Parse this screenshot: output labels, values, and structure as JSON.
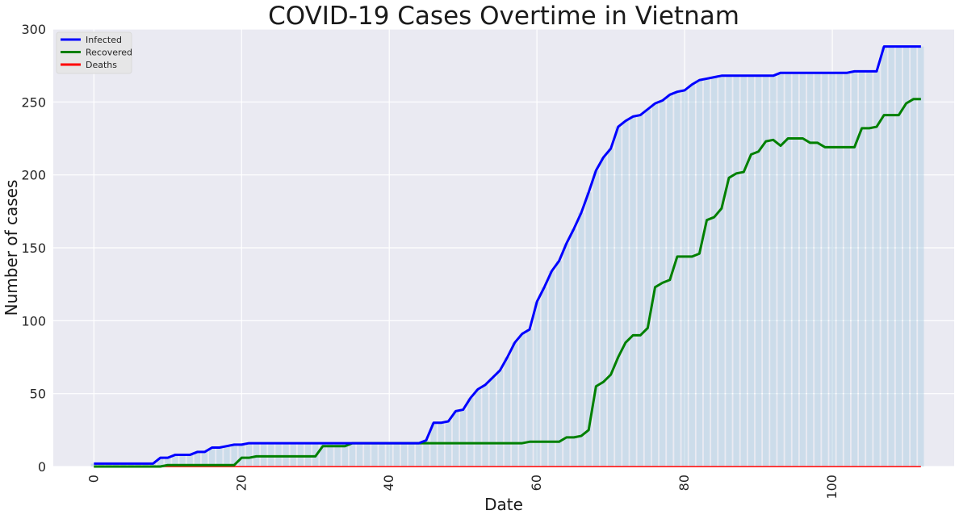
{
  "chart_data": {
    "type": "line",
    "title": "COVID-19 Cases Overtime in Vietnam",
    "xlabel": "Date",
    "ylabel": "Number of cases",
    "xlim": [
      -5.5,
      116.5
    ],
    "ylim": [
      0,
      300
    ],
    "xticks": [
      0,
      20,
      40,
      60,
      80,
      100
    ],
    "yticks": [
      0,
      50,
      100,
      150,
      200,
      250,
      300
    ],
    "grid": true,
    "legend_position": "top-left",
    "bars": {
      "series": "Infected",
      "color": "#a9cbe0"
    },
    "series": [
      {
        "name": "Infected",
        "color": "#0000ff",
        "values": [
          2,
          2,
          2,
          2,
          2,
          2,
          2,
          2,
          2,
          6,
          6,
          8,
          8,
          8,
          10,
          10,
          13,
          13,
          14,
          15,
          15,
          16,
          16,
          16,
          16,
          16,
          16,
          16,
          16,
          16,
          16,
          16,
          16,
          16,
          16,
          16,
          16,
          16,
          16,
          16,
          16,
          16,
          16,
          16,
          16,
          18,
          30,
          30,
          31,
          38,
          39,
          47,
          53,
          56,
          61,
          66,
          75,
          85,
          91,
          94,
          113,
          123,
          134,
          141,
          153,
          163,
          174,
          188,
          203,
          212,
          218,
          233,
          237,
          240,
          241,
          245,
          249,
          251,
          255,
          257,
          258,
          262,
          265,
          266,
          267,
          268,
          268,
          268,
          268,
          268,
          268,
          268,
          268,
          270,
          270,
          270,
          270,
          270,
          270,
          270,
          270,
          270,
          270,
          271,
          271,
          271,
          271,
          288,
          288,
          288,
          288,
          288,
          288
        ]
      },
      {
        "name": "Recovered",
        "color": "#008000",
        "values": [
          0,
          0,
          0,
          0,
          0,
          0,
          0,
          0,
          0,
          0,
          1,
          1,
          1,
          1,
          1,
          1,
          1,
          1,
          1,
          1,
          6,
          6,
          7,
          7,
          7,
          7,
          7,
          7,
          7,
          7,
          7,
          14,
          14,
          14,
          14,
          16,
          16,
          16,
          16,
          16,
          16,
          16,
          16,
          16,
          16,
          16,
          16,
          16,
          16,
          16,
          16,
          16,
          16,
          16,
          16,
          16,
          16,
          16,
          16,
          17,
          17,
          17,
          17,
          17,
          20,
          20,
          21,
          25,
          55,
          58,
          63,
          75,
          85,
          90,
          90,
          95,
          123,
          126,
          128,
          144,
          144,
          144,
          146,
          169,
          171,
          177,
          198,
          201,
          202,
          214,
          216,
          223,
          224,
          220,
          225,
          225,
          225,
          222,
          222,
          219,
          219,
          219,
          219,
          219,
          232,
          232,
          233,
          241,
          241,
          241,
          249,
          252,
          252
        ]
      },
      {
        "name": "Deaths",
        "color": "#ff0000",
        "values": [
          0,
          0,
          0,
          0,
          0,
          0,
          0,
          0,
          0,
          0,
          0,
          0,
          0,
          0,
          0,
          0,
          0,
          0,
          0,
          0,
          0,
          0,
          0,
          0,
          0,
          0,
          0,
          0,
          0,
          0,
          0,
          0,
          0,
          0,
          0,
          0,
          0,
          0,
          0,
          0,
          0,
          0,
          0,
          0,
          0,
          0,
          0,
          0,
          0,
          0,
          0,
          0,
          0,
          0,
          0,
          0,
          0,
          0,
          0,
          0,
          0,
          0,
          0,
          0,
          0,
          0,
          0,
          0,
          0,
          0,
          0,
          0,
          0,
          0,
          0,
          0,
          0,
          0,
          0,
          0,
          0,
          0,
          0,
          0,
          0,
          0,
          0,
          0,
          0,
          0,
          0,
          0,
          0,
          0,
          0,
          0,
          0,
          0,
          0,
          0,
          0,
          0,
          0,
          0,
          0,
          0,
          0,
          0,
          0,
          0,
          0,
          0,
          0
        ]
      }
    ]
  }
}
